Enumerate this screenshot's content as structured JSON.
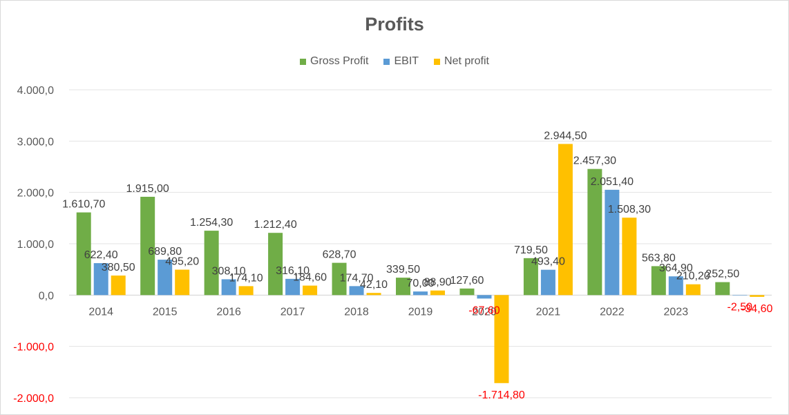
{
  "chart_data": {
    "type": "bar",
    "title": "Profits",
    "xlabel": "",
    "ylabel": "",
    "ylim": [
      -2000,
      4000
    ],
    "yticks": [
      -2000,
      -1000,
      0,
      1000,
      2000,
      3000,
      4000
    ],
    "ytick_labels": [
      "-2.000,0",
      "-1.000,0",
      "0,0",
      "1.000,0",
      "2.000,0",
      "3.000,0",
      "4.000,0"
    ],
    "grid": true,
    "legend_position": "top",
    "categories": [
      "2014",
      "2015",
      "2016",
      "2017",
      "2018",
      "2019",
      "2020",
      "2021",
      "2022",
      "2023",
      ""
    ],
    "series": [
      {
        "name": "Gross Profit",
        "color": "#70ad47",
        "values": [
          1610.7,
          1915.0,
          1254.3,
          1212.4,
          628.7,
          339.5,
          127.6,
          719.5,
          2457.3,
          563.8,
          252.5
        ],
        "labels": [
          "1.610,70",
          "1.915,00",
          "1.254,30",
          "1.212,40",
          "628,70",
          "339,50",
          "127,60",
          "719,50",
          "2.457,30",
          "563,80",
          "252,50"
        ]
      },
      {
        "name": "EBIT",
        "color": "#5b9bd5",
        "values": [
          622.4,
          689.8,
          308.1,
          316.1,
          174.7,
          70.0,
          -67.6,
          493.4,
          2051.4,
          364.9,
          -2.5
        ],
        "labels": [
          "622,40",
          "689,80",
          "308,10",
          "316,10",
          "174,70",
          "70,00",
          "-67,60",
          "493,40",
          "2.051,40",
          "364,90",
          "-2,50"
        ]
      },
      {
        "name": "Net profit",
        "color": "#ffc000",
        "values": [
          380.5,
          495.2,
          174.1,
          184.6,
          42.1,
          88.9,
          -1714.8,
          2944.5,
          1508.3,
          210.2,
          -34.6
        ],
        "labels": [
          "380,50",
          "495,20",
          "174,10",
          "184,60",
          "42,10",
          "88,90",
          "-1.714,80",
          "2.944,50",
          "1.508,30",
          "210,20",
          "-34,60"
        ]
      }
    ]
  }
}
